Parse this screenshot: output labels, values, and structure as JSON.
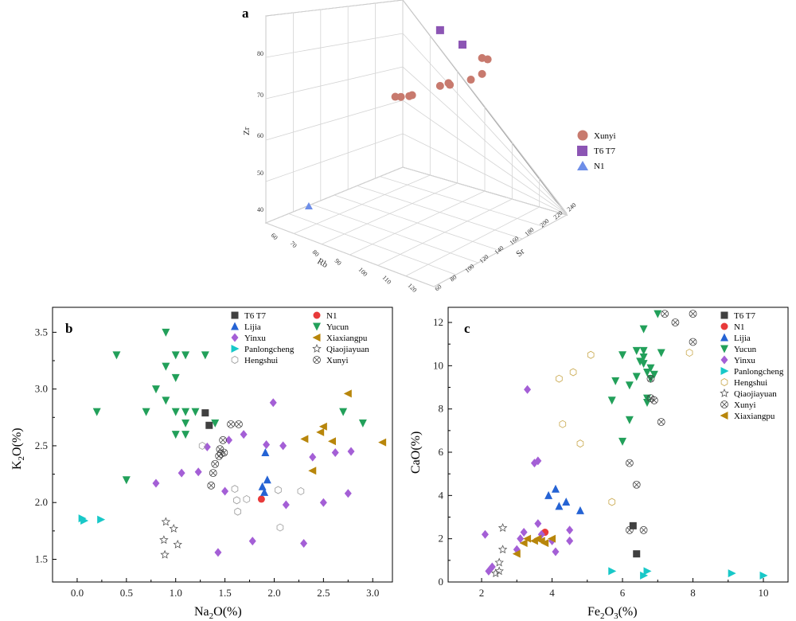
{
  "chart_data": [
    {
      "panel": "a",
      "type": "scatter",
      "axes_labels": {
        "x": "Rb",
        "y": "Sr",
        "z": "Zr"
      },
      "x_ticks": [
        "60",
        "70",
        "80",
        "90",
        "100",
        "110",
        "120"
      ],
      "y_ticks": [
        "60",
        "80",
        "100",
        "120",
        "140",
        "160",
        "180",
        "200",
        "220",
        "240"
      ],
      "z_ticks": [
        "40",
        "50",
        "60",
        "70",
        "80"
      ],
      "legend": [
        {
          "name": "Xunyi",
          "color": "#c87a6e",
          "marker": "circle"
        },
        {
          "name": "T6 T7",
          "color": "#8c55b4",
          "marker": "square"
        },
        {
          "name": "N1",
          "color": "#6e8ee8",
          "marker": "triangle"
        }
      ],
      "series": [
        {
          "name": "Xunyi",
          "points": [
            {
              "x": 72,
              "y": 200,
              "z": 60
            },
            {
              "x": 74,
              "y": 200,
              "z": 60.5
            },
            {
              "x": 77,
              "y": 200,
              "z": 61.5
            },
            {
              "x": 78,
              "y": 200,
              "z": 62
            },
            {
              "x": 88,
              "y": 200,
              "z": 67
            },
            {
              "x": 91,
              "y": 200,
              "z": 68.5
            },
            {
              "x": 91.5,
              "y": 200,
              "z": 68.2
            },
            {
              "x": 99,
              "y": 200,
              "z": 71.5
            },
            {
              "x": 103,
              "y": 200,
              "z": 74
            },
            {
              "x": 103,
              "y": 200,
              "z": 78
            },
            {
              "x": 105,
              "y": 200,
              "z": 78.2
            }
          ]
        },
        {
          "name": "T6 T7",
          "points": [
            {
              "x": 88,
              "y": 200,
              "z": 81
            },
            {
              "x": 96,
              "y": 200,
              "z": 79.5
            }
          ]
        },
        {
          "name": "N1",
          "points": [
            {
              "x": 68,
              "y": 90,
              "z": 40
            }
          ]
        }
      ]
    },
    {
      "panel": "b",
      "type": "scatter",
      "xlabel": "Na2O(%)",
      "ylabel": "K2O(%)",
      "xlim": [
        -0.25,
        3.2
      ],
      "ylim": [
        1.3,
        3.72
      ],
      "x_ticks": [
        "0.0",
        "0.5",
        "1.0",
        "1.5",
        "2.0",
        "2.5",
        "3.0"
      ],
      "y_ticks": [
        "1.5",
        "2.0",
        "2.5",
        "3.0",
        "3.5"
      ],
      "series": [
        {
          "name": "T6 T7",
          "color": "#404040",
          "marker": "square",
          "points": [
            [
              1.3,
              2.79
            ],
            [
              1.34,
              2.68
            ]
          ]
        },
        {
          "name": "N1",
          "color": "#e83a3a",
          "marker": "circle",
          "points": [
            [
              1.87,
              2.03
            ]
          ]
        },
        {
          "name": "Lijia",
          "color": "#2563d4",
          "marker": "triangle",
          "points": [
            [
              1.88,
              2.14
            ],
            [
              1.91,
              2.44
            ],
            [
              1.93,
              2.2
            ],
            [
              1.9,
              2.09
            ]
          ]
        },
        {
          "name": "Yucun",
          "color": "#22a05a",
          "marker": "triangle-down",
          "points": [
            [
              0.2,
              2.8
            ],
            [
              0.4,
              3.3
            ],
            [
              0.5,
              2.2
            ],
            [
              0.7,
              2.8
            ],
            [
              0.8,
              3.0
            ],
            [
              0.9,
              3.5
            ],
            [
              0.9,
              3.2
            ],
            [
              0.9,
              2.9
            ],
            [
              1.0,
              3.3
            ],
            [
              1.0,
              3.1
            ],
            [
              1.0,
              2.8
            ],
            [
              1.0,
              2.6
            ],
            [
              1.1,
              3.3
            ],
            [
              1.1,
              2.8
            ],
            [
              1.1,
              2.7
            ],
            [
              1.1,
              2.6
            ],
            [
              1.2,
              2.8
            ],
            [
              1.3,
              3.3
            ],
            [
              1.4,
              2.7
            ],
            [
              2.7,
              2.8
            ],
            [
              2.9,
              2.7
            ]
          ]
        },
        {
          "name": "Yinxu",
          "color": "#a45fd6",
          "marker": "diamond",
          "points": [
            [
              0.8,
              2.17
            ],
            [
              1.06,
              2.26
            ],
            [
              1.23,
              2.27
            ],
            [
              1.32,
              2.49
            ],
            [
              1.43,
              1.56
            ],
            [
              1.5,
              2.1
            ],
            [
              1.54,
              2.55
            ],
            [
              1.69,
              2.6
            ],
            [
              1.78,
              1.66
            ],
            [
              1.92,
              2.51
            ],
            [
              1.99,
              2.88
            ],
            [
              2.09,
              2.5
            ],
            [
              2.12,
              1.98
            ],
            [
              2.3,
              1.64
            ],
            [
              2.39,
              2.4
            ],
            [
              2.5,
              2.0
            ],
            [
              2.62,
              2.44
            ],
            [
              2.75,
              2.08
            ],
            [
              2.78,
              2.45
            ]
          ]
        },
        {
          "name": "Xiaxiangpu",
          "color": "#b8860b",
          "marker": "triangle-left",
          "points": [
            [
              2.31,
              2.56
            ],
            [
              2.39,
              2.28
            ],
            [
              2.47,
              2.62
            ],
            [
              2.5,
              2.67
            ],
            [
              2.59,
              2.54
            ],
            [
              2.75,
              2.96
            ],
            [
              3.1,
              2.53
            ]
          ]
        },
        {
          "name": "Panlongcheng",
          "color": "#18c8c8",
          "marker": "triangle-right",
          "points": [
            [
              0.05,
              1.86
            ],
            [
              0.07,
              1.84
            ],
            [
              0.24,
              1.85
            ]
          ]
        },
        {
          "name": "Qiaojiayuan",
          "color": "#555555",
          "marker": "star",
          "points": [
            [
              0.88,
              1.67
            ],
            [
              0.89,
              1.54
            ],
            [
              0.9,
              1.83
            ],
            [
              0.98,
              1.77
            ],
            [
              1.02,
              1.63
            ]
          ]
        },
        {
          "name": "Hengshui",
          "color": "#999999",
          "marker": "hexagon",
          "points": [
            [
              1.27,
              2.5
            ],
            [
              1.6,
              2.12
            ],
            [
              1.62,
              2.02
            ],
            [
              1.63,
              1.92
            ],
            [
              1.72,
              2.03
            ],
            [
              2.04,
              2.11
            ],
            [
              2.06,
              1.78
            ],
            [
              2.27,
              2.1
            ]
          ]
        },
        {
          "name": "Xunyi",
          "color": "#444444",
          "marker": "cross-circle",
          "points": [
            [
              1.36,
              2.15
            ],
            [
              1.38,
              2.26
            ],
            [
              1.4,
              2.34
            ],
            [
              1.44,
              2.41
            ],
            [
              1.45,
              2.47
            ],
            [
              1.46,
              2.43
            ],
            [
              1.48,
              2.55
            ],
            [
              1.49,
              2.44
            ],
            [
              1.56,
              2.69
            ],
            [
              1.64,
              2.69
            ]
          ]
        }
      ],
      "legend_order": [
        "T6 T7",
        "N1",
        "Lijia",
        "Yucun",
        "Yinxu",
        "Xiaxiangpu",
        "Panlongcheng",
        "Qiaojiayuan",
        "Hengshui",
        "Xunyi"
      ]
    },
    {
      "panel": "c",
      "type": "scatter",
      "xlabel": "Fe2O3(%)",
      "ylabel": "CaO(%)",
      "xlim": [
        1.05,
        10.7
      ],
      "ylim": [
        0,
        12.7
      ],
      "x_ticks": [
        "2",
        "4",
        "6",
        "8",
        "10"
      ],
      "y_ticks": [
        "0",
        "2",
        "4",
        "6",
        "8",
        "10",
        "12"
      ],
      "series": [
        {
          "name": "T6 T7",
          "color": "#404040",
          "marker": "square",
          "points": [
            [
              6.3,
              2.6
            ],
            [
              6.4,
              1.3
            ]
          ]
        },
        {
          "name": "N1",
          "color": "#e83a3a",
          "marker": "circle",
          "points": [
            [
              3.8,
              2.3
            ]
          ]
        },
        {
          "name": "Lijia",
          "color": "#2563d4",
          "marker": "triangle",
          "points": [
            [
              3.9,
              4.0
            ],
            [
              4.1,
              4.3
            ],
            [
              4.2,
              3.5
            ],
            [
              4.4,
              3.7
            ],
            [
              4.8,
              3.3
            ]
          ]
        },
        {
          "name": "Yucun",
          "color": "#22a05a",
          "marker": "triangle-down",
          "points": [
            [
              5.7,
              8.4
            ],
            [
              5.8,
              9.3
            ],
            [
              6.0,
              10.5
            ],
            [
              6.0,
              6.5
            ],
            [
              6.2,
              9.1
            ],
            [
              6.2,
              7.5
            ],
            [
              6.4,
              9.5
            ],
            [
              6.4,
              10.7
            ],
            [
              6.5,
              10.2
            ],
            [
              6.6,
              11.7
            ],
            [
              6.6,
              10.7
            ],
            [
              6.6,
              10.4
            ],
            [
              6.6,
              10.1
            ],
            [
              6.7,
              9.7
            ],
            [
              6.7,
              8.5
            ],
            [
              6.7,
              8.3
            ],
            [
              6.8,
              9.9
            ],
            [
              6.8,
              9.4
            ],
            [
              6.9,
              9.6
            ],
            [
              7.0,
              12.4
            ],
            [
              7.1,
              10.6
            ]
          ]
        },
        {
          "name": "Yinxu",
          "color": "#a45fd6",
          "marker": "diamond",
          "points": [
            [
              2.1,
              2.2
            ],
            [
              2.2,
              0.5
            ],
            [
              2.3,
              0.7
            ],
            [
              3.0,
              1.5
            ],
            [
              3.1,
              2.0
            ],
            [
              3.2,
              2.3
            ],
            [
              3.3,
              8.9
            ],
            [
              3.5,
              5.5
            ],
            [
              3.6,
              5.6
            ],
            [
              3.6,
              2.7
            ],
            [
              3.7,
              2.2
            ],
            [
              4.0,
              1.9
            ],
            [
              4.1,
              1.4
            ],
            [
              4.5,
              2.4
            ],
            [
              4.5,
              1.9
            ]
          ]
        },
        {
          "name": "Xiaxiangpu",
          "color": "#b8860b",
          "marker": "triangle-left",
          "points": [
            [
              3.0,
              1.3
            ],
            [
              3.2,
              1.8
            ],
            [
              3.3,
              2.0
            ],
            [
              3.5,
              1.9
            ],
            [
              3.6,
              2.0
            ],
            [
              3.7,
              1.9
            ],
            [
              3.8,
              1.8
            ],
            [
              4.0,
              2.0
            ]
          ]
        },
        {
          "name": "Panlongcheng",
          "color": "#18c8c8",
          "marker": "triangle-right",
          "points": [
            [
              5.7,
              0.5
            ],
            [
              6.6,
              0.3
            ],
            [
              6.7,
              0.5
            ],
            [
              9.1,
              0.4
            ],
            [
              10.0,
              0.3
            ]
          ]
        },
        {
          "name": "Qiaojiayuan",
          "color": "#555555",
          "marker": "star",
          "points": [
            [
              2.4,
              0.4
            ],
            [
              2.5,
              0.5
            ],
            [
              2.5,
              0.9
            ],
            [
              2.6,
              1.5
            ],
            [
              2.6,
              2.5
            ]
          ]
        },
        {
          "name": "Hengshui",
          "color": "#c9a84c",
          "marker": "hexagon",
          "points": [
            [
              4.2,
              9.4
            ],
            [
              4.3,
              7.3
            ],
            [
              4.6,
              9.7
            ],
            [
              4.8,
              6.4
            ],
            [
              5.1,
              10.5
            ],
            [
              5.7,
              3.7
            ],
            [
              7.9,
              10.6
            ]
          ]
        },
        {
          "name": "Xunyi",
          "color": "#444444",
          "marker": "cross-circle",
          "points": [
            [
              6.2,
              5.5
            ],
            [
              6.2,
              2.4
            ],
            [
              6.4,
              4.5
            ],
            [
              6.6,
              2.4
            ],
            [
              6.8,
              8.5
            ],
            [
              6.8,
              9.4
            ],
            [
              6.9,
              8.4
            ],
            [
              7.1,
              7.4
            ],
            [
              7.2,
              12.4
            ],
            [
              7.5,
              12.0
            ],
            [
              8.0,
              11.1
            ],
            [
              8.0,
              12.4
            ]
          ]
        }
      ],
      "legend_order": [
        "T6 T7",
        "N1",
        "Lijia",
        "Yucun",
        "Yinxu",
        "Panlongcheng",
        "Hengshui",
        "Qiaojiayuan",
        "Xunyi",
        "Xiaxiangpu"
      ]
    }
  ],
  "panel_labels": {
    "a": "a",
    "b": "b",
    "c": "c"
  },
  "axis_titles": {
    "b_x_main": "Na",
    "b_x_sub": "2",
    "b_x_tail": "O(%)",
    "b_y_main": "K",
    "b_y_sub": "2",
    "b_y_tail": "O(%)",
    "c_x_main": "Fe",
    "c_x_sub": "2",
    "c_x_mid": "O",
    "c_x_sub2": "3",
    "c_x_tail": "(%)",
    "c_y": "CaO(%)"
  }
}
